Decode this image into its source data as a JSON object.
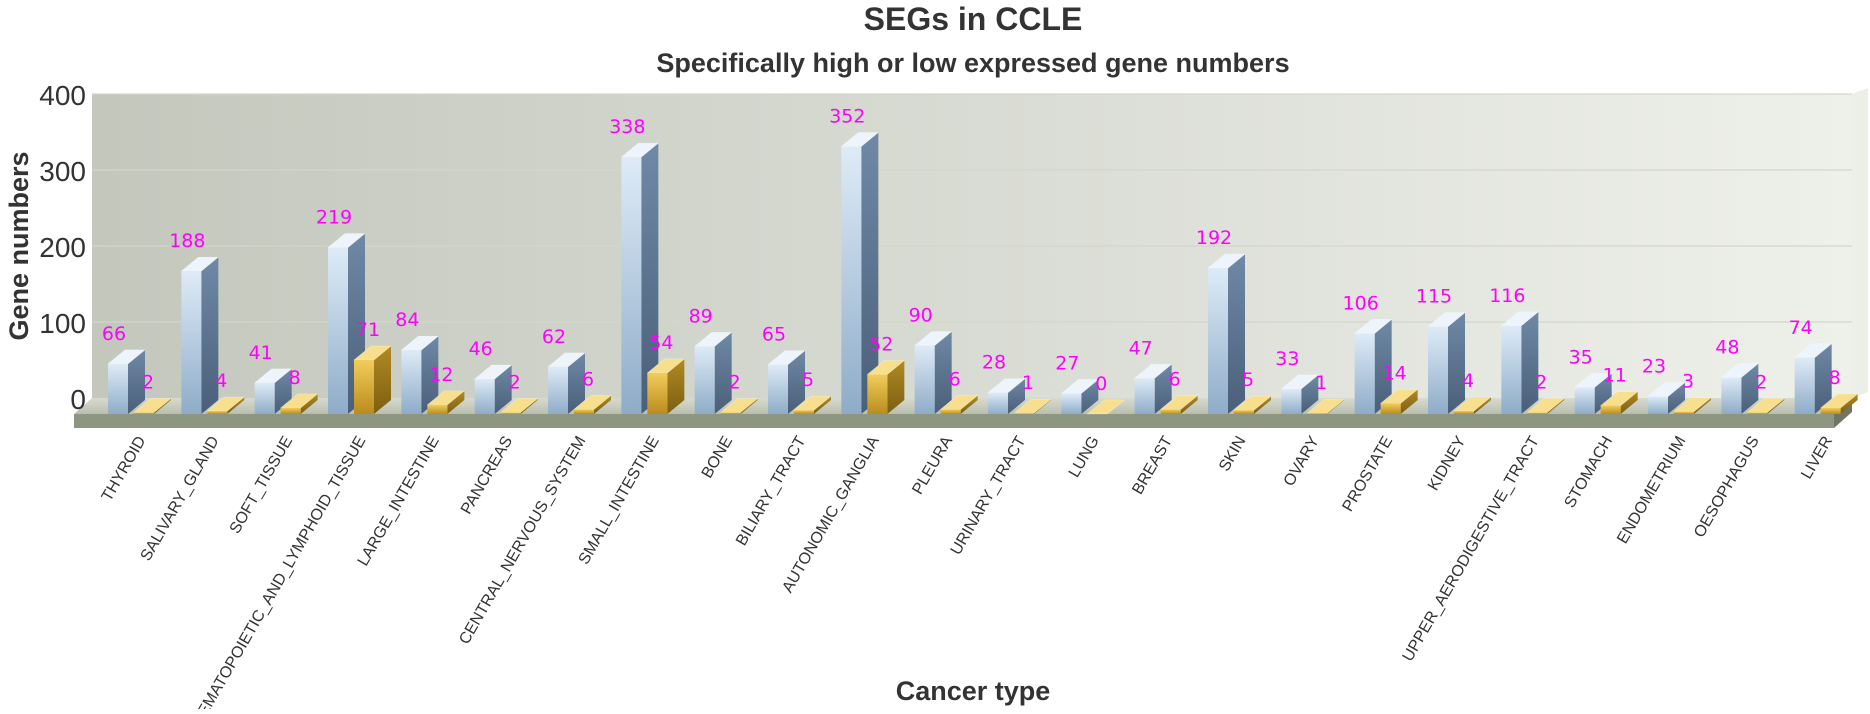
{
  "chart_data": {
    "type": "bar",
    "title": "SEGs in CCLE",
    "subtitle": "Specifically high or low expressed gene numbers",
    "xlabel": "Cancer type",
    "ylabel": "Gene numbers",
    "ylim": [
      0,
      400
    ],
    "yticks": [
      "0",
      "100",
      "200",
      "300",
      "400"
    ],
    "categories": [
      "THYROID",
      "SALIVARY_GLAND",
      "SOFT_TISSUE",
      "HAEMATOPOIETIC_AND_LYMPHOID_TISSUE",
      "LARGE_INTESTINE",
      "PANCREAS",
      "CENTRAL_NERVOUS_SYSTEM",
      "SMALL_INTESTINE",
      "BONE",
      "BILIARY_TRACT",
      "AUTONOMIC_GANGLIA",
      "PLEURA",
      "URINARY_TRACT",
      "LUNG",
      "BREAST",
      "SKIN",
      "OVARY",
      "PROSTATE",
      "KIDNEY",
      "UPPER_AERODIGESTIVE_TRACT",
      "STOMACH",
      "ENDOMETRIUM",
      "OESOPHAGUS",
      "LIVER"
    ],
    "series": [
      {
        "values": [
          66,
          188,
          41,
          219,
          84,
          46,
          62,
          338,
          89,
          65,
          352,
          90,
          28,
          27,
          47,
          192,
          33,
          106,
          115,
          116,
          35,
          23,
          48,
          74
        ],
        "color": "#a9c4dd"
      },
      {
        "values": [
          2,
          4,
          8,
          71,
          12,
          2,
          6,
          54,
          2,
          5,
          52,
          6,
          1,
          0,
          6,
          5,
          1,
          14,
          4,
          2,
          11,
          3,
          2,
          8
        ],
        "color": "#e0b748"
      }
    ],
    "data_label_color": "#ff00ff",
    "grid": true,
    "legend": "none"
  }
}
